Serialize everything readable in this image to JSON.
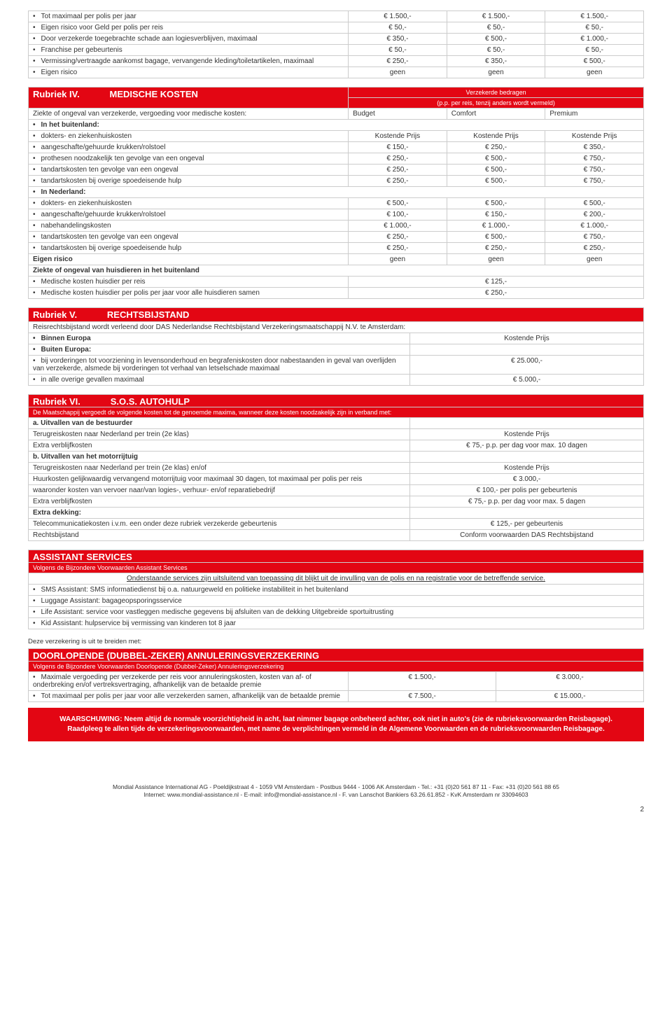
{
  "colors": {
    "red": "#e30613",
    "border": "#cccccc",
    "text": "#333333"
  },
  "top_rows": [
    {
      "label": "Tot maximaal per polis per jaar",
      "cls": "bullet",
      "a": "€        1.500,-",
      "b": "€        1.500,-",
      "c": "€        1.500,-"
    },
    {
      "label": "Eigen risico voor Geld per polis per reis",
      "cls": "bullet",
      "a": "€              50,-",
      "b": "€              50,-",
      "c": "€              50,-"
    },
    {
      "label": "Door verzekerde toegebrachte schade aan logiesverblijven, maximaal",
      "cls": "bullet",
      "a": "€           350,-",
      "b": "€           500,-",
      "c": "€        1.000,-"
    },
    {
      "label": "Franchise per gebeurtenis",
      "cls": "bullet",
      "a": "€              50,-",
      "b": "€              50,-",
      "c": "€              50,-"
    },
    {
      "label": "Vermissing/vertraagde aankomst bagage, vervangende kleding/toiletartikelen, maximaal",
      "cls": "bullet",
      "a": "€           250,-",
      "b": "€           350,-",
      "c": "€           500,-"
    },
    {
      "label": "Eigen risico",
      "cls": "bullet",
      "a": "geen",
      "b": "geen",
      "c": "geen"
    }
  ],
  "rubriek4": {
    "rubriek": "Rubriek IV.",
    "title": "MEDISCHE KOSTEN",
    "sub1": "Verzekerde bedragen",
    "sub2": "(p.p. per reis, tenzij anders wordt vermeld)",
    "col_label": "Ziekte of ongeval van verzekerde, vergoeding voor medische kosten:",
    "col_a": "Budget",
    "col_b": "Comfort",
    "col_c": "Premium",
    "rows": [
      {
        "label": "In het buitenland:",
        "cls": "bullet",
        "bold": true,
        "span": true
      },
      {
        "label": "dokters- en ziekenhuiskosten",
        "cls": "bullet2",
        "a": "Kostende Prijs",
        "b": "Kostende Prijs",
        "c": "Kostende Prijs"
      },
      {
        "label": "aangeschafte/gehuurde krukken/rolstoel",
        "cls": "bullet2",
        "a": "€           150,-",
        "b": "€           250,-",
        "c": "€           350,-"
      },
      {
        "label": "prothesen noodzakelijk ten gevolge van een ongeval",
        "cls": "bullet2",
        "a": "€           250,-",
        "b": "€           500,-",
        "c": "€           750,-"
      },
      {
        "label": "tandartskosten ten gevolge van een ongeval",
        "cls": "bullet2",
        "a": "€           250,-",
        "b": "€           500,-",
        "c": "€           750,-"
      },
      {
        "label": "tandartskosten bij overige spoedeisende hulp",
        "cls": "bullet2",
        "a": "€           250,-",
        "b": "€           500,-",
        "c": "€           750,-"
      },
      {
        "label": "In Nederland:",
        "cls": "bullet",
        "bold": true,
        "span": true
      },
      {
        "label": "dokters- en ziekenhuiskosten",
        "cls": "bullet2",
        "a": "€           500,-",
        "b": "€           500,-",
        "c": "€           500,-"
      },
      {
        "label": "aangeschafte/gehuurde krukken/rolstoel",
        "cls": "bullet2",
        "a": "€           100,-",
        "b": "€           150,-",
        "c": "€           200,-"
      },
      {
        "label": "nabehandelingskosten",
        "cls": "bullet2",
        "a": "€        1.000,-",
        "b": "€        1.000,-",
        "c": "€        1.000,-"
      },
      {
        "label": "tandartskosten ten gevolge van een ongeval",
        "cls": "bullet2",
        "a": "€           250,-",
        "b": "€           500,-",
        "c": "€           750,-"
      },
      {
        "label": "tandartskosten bij overige spoedeisende hulp",
        "cls": "bullet2",
        "a": "€           250,-",
        "b": "€           250,-",
        "c": "€           250,-"
      },
      {
        "label": "Eigen risico",
        "cls": "",
        "bold": true,
        "a": "geen",
        "b": "geen",
        "c": "geen"
      },
      {
        "label": "Ziekte of ongeval van huisdieren in het buitenland",
        "cls": "",
        "bold": true,
        "span": true
      },
      {
        "label": "Medische kosten huisdier per reis",
        "cls": "bullet2",
        "merged": "€ 125,-"
      },
      {
        "label": "Medische kosten huisdier per polis per jaar voor alle huisdieren samen",
        "cls": "bullet2",
        "merged": "€ 250,-"
      }
    ]
  },
  "rubriek5": {
    "rubriek": "Rubriek V.",
    "title": "RECHTSBIJSTAND",
    "intro": "Reisrechtsbijstand wordt verleend door DAS Nederlandse Rechtsbijstand Verzekeringsmaatschappij N.V. te Amsterdam:",
    "rows": [
      {
        "label": "Binnen Europa",
        "cls": "bullet",
        "bold": true,
        "v": "Kostende Prijs"
      },
      {
        "label": "Buiten Europa:",
        "cls": "bullet",
        "bold": true,
        "v": ""
      },
      {
        "label": "bij vorderingen tot voorziening in levensonderhoud en begrafeniskosten door nabestaanden in geval van overlijden van verzekerde, alsmede bij vorderingen tot verhaal van letselschade maximaal",
        "cls": "bullet2",
        "v": "€ 25.000,-"
      },
      {
        "label": "in alle overige gevallen maximaal",
        "cls": "bullet2",
        "v": "€ 5.000,-"
      }
    ]
  },
  "rubriek6": {
    "rubriek": "Rubriek VI.",
    "title": "S.O.S. AUTOHULP",
    "intro": "De Maatschappij vergoedt de volgende kosten tot de genoemde maxima, wanneer deze kosten noodzakelijk zijn in verband met:",
    "rows": [
      {
        "label": "a.    Uitvallen van de bestuurder",
        "cls": "",
        "bold": true,
        "v": ""
      },
      {
        "label": "Terugreiskosten naar Nederland per trein (2e klas)",
        "cls": "indent2",
        "v": "Kostende Prijs"
      },
      {
        "label": "Extra verblijfkosten",
        "cls": "indent2",
        "v": "€ 75,- p.p. per dag voor max. 10 dagen"
      },
      {
        "label": "b.    Uitvallen van het motorrijtuig",
        "cls": "",
        "bold": true,
        "v": ""
      },
      {
        "label": "Terugreiskosten naar Nederland per trein (2e klas) en/of",
        "cls": "indent2",
        "v": "Kostende Prijs"
      },
      {
        "label": "Huurkosten gelijkwaardig vervangend motorrijtuig  voor maximaal  30 dagen, tot maximaal per polis per reis",
        "cls": "indent2",
        "v": "€ 3.000,-"
      },
      {
        "label": "waaronder  kosten van vervoer naar/van logies-, verhuur- en/of reparatiebedrijf",
        "cls": "indent",
        "v": "€ 100,- per polis per gebeurtenis"
      },
      {
        "label": "Extra verblijfkosten",
        "cls": "indent2",
        "v": "€ 75,- p.p. per dag voor max. 5 dagen"
      },
      {
        "label": "Extra dekking:",
        "cls": "indent2",
        "bold": true,
        "v": ""
      },
      {
        "label": "Telecommunicatiekosten i.v.m. een onder deze rubriek verzekerde gebeurtenis",
        "cls": "indent2",
        "v": "€ 125,- per gebeurtenis"
      },
      {
        "label": "Rechtsbijstand",
        "cls": "indent2",
        "v": "Conform voorwaarden DAS Rechtsbijstand"
      }
    ]
  },
  "assistant": {
    "title": "ASSISTANT SERVICES",
    "sub": "Volgens de Bijzondere Voorwaarden Assistant Services",
    "note": "Onderstaande services zijn uitsluitend van toepassing dit blijkt uit de invulling van de polis en na registratie voor de betreffende service.",
    "rows": [
      "SMS Assistant: SMS informatiedienst bij o.a. natuurgeweld en politieke instabiliteit in het buitenland",
      "Luggage Assistant: bagageopsporingsservice",
      "Life Assistant: service voor vastleggen medische gegevens bij afsluiten van de dekking Uitgebreide sportuitrusting",
      "Kid Assistant: hulpservice bij vermissing van kinderen tot 8 jaar"
    ]
  },
  "extend": "Deze verzekering is uit te breiden met:",
  "doorlopende": {
    "title": "DOORLOPENDE (DUBBEL-ZEKER) ANNULERINGSVERZEKERING",
    "sub": "Volgens de Bijzondere Voorwaarden Doorlopende (Dubbel-Zeker) Annuleringsverzekering",
    "rows": [
      {
        "label": "Maximale vergoeding per verzekerde per reis voor annuleringskosten, kosten van af- of onderbreking en/of vertreksvertraging, afhankelijk van de betaalde premie",
        "cls": "bullet",
        "a": "€ 1.500,-",
        "b": "€ 3.000,-"
      },
      {
        "label": "Tot maximaal  per polis per jaar voor alle verzekerden samen, afhankelijk van de betaalde premie",
        "cls": "bullet",
        "a": "€ 7.500,-",
        "b": "€ 15.000,-"
      }
    ]
  },
  "warning": "WAARSCHUWING: Neem altijd de normale voorzichtigheid in acht, laat nimmer bagage onbeheerd achter, ook niet in auto's (zie de rubrieksvoorwaarden Reisbagage). Raadpleeg te allen tijde de verzekeringsvoorwaarden, met name de verplichtingen vermeld in de Algemene Voorwaarden en de rubrieksvoorwaarden Reisbagage.",
  "footer": {
    "l1": "Mondial Assistance International AG - Poeldijkstraat 4 - 1059 VM Amsterdam - Postbus 9444 - 1006 AK Amsterdam - Tel.: +31 (0)20 561 87 11 - Fax: +31 (0)20 561 88 65",
    "l2": "Internet: www.mondial-assistance.nl - E-mail: info@mondial-assistance.nl - F. van Lanschot Bankiers 63.26.61.852 - KvK Amsterdam nr 33094603"
  },
  "pagenum": "2"
}
